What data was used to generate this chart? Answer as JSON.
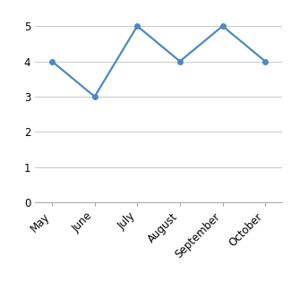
{
  "categories": [
    "May",
    "June",
    "July",
    "August",
    "September",
    "October"
  ],
  "values": [
    4,
    3,
    5,
    4,
    5,
    4
  ],
  "line_color": "#4C8AC0",
  "marker": "o",
  "marker_size": 4,
  "linewidth": 1.6,
  "ylim": [
    0,
    5.5
  ],
  "yticks": [
    0,
    1,
    2,
    3,
    4,
    5
  ],
  "grid_color": "#C8C8C8",
  "background_color": "#FFFFFF",
  "tick_label_fontsize": 8.5,
  "xlabel_rotation": 45,
  "spine_color": "#AAAAAA"
}
